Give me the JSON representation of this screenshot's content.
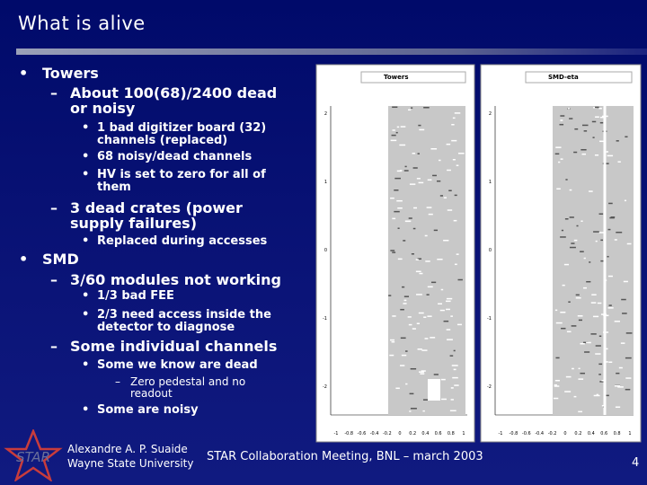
{
  "header": {
    "title": "What is alive"
  },
  "bullets": [
    {
      "text": "Towers",
      "children": [
        {
          "text": "About 100(68)/2400 dead or noisy",
          "children": [
            {
              "text": "1 bad digitizer board (32) channels (replaced)"
            },
            {
              "text": "68 noisy/dead channels"
            },
            {
              "text": "HV is set to zero for all of them"
            }
          ]
        },
        {
          "text": "3 dead crates (power supply failures)",
          "children": [
            {
              "text": "Replaced during accesses"
            }
          ]
        }
      ]
    },
    {
      "text": "SMD",
      "children": [
        {
          "text": "3/60 modules not working",
          "children": [
            {
              "text": "1/3 bad FEE"
            },
            {
              "text": "2/3 need access inside the detector to diagnose"
            }
          ]
        },
        {
          "text": "Some individual channels",
          "children": [
            {
              "text": "Some we know are dead",
              "children": [
                {
                  "text": "Zero pedestal and no readout"
                }
              ]
            },
            {
              "text": "Some are noisy"
            }
          ]
        }
      ]
    }
  ],
  "figures": [
    {
      "title": "Towers",
      "y_tick_labels": [
        "2",
        "1",
        "0",
        "-1",
        "-2"
      ],
      "x_tick_labels": [
        "-1",
        "-0.8",
        "-0.6",
        "-0.4",
        "-0.2",
        "0",
        "0.2",
        "0.4",
        "0.6",
        "0.8",
        "1"
      ]
    },
    {
      "title": "SMD-eta",
      "y_tick_labels": [
        "2",
        "1",
        "0",
        "-1",
        "-2"
      ],
      "x_tick_labels": [
        "-1",
        "-0.8",
        "-0.6",
        "-0.4",
        "-0.2",
        "0",
        "0.2",
        "0.4",
        "0.6",
        "0.8",
        "1"
      ]
    }
  ],
  "footer": {
    "logo": "STAR",
    "author": "Alexandre A. P. Suaide",
    "affiliation": "Wayne State University",
    "meeting": "STAR Collaboration Meeting, BNL – march 2003",
    "page": "4"
  }
}
